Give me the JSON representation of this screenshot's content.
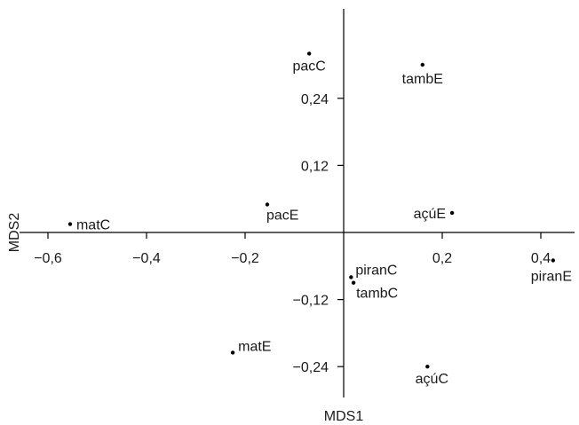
{
  "chart_data": {
    "type": "scatter",
    "title": "",
    "xlabel": "MDS1",
    "ylabel": "MDS2",
    "xlim": [
      -0.6,
      0.42
    ],
    "ylim": [
      -0.29,
      0.4
    ],
    "grid": false,
    "x_ticks": [
      {
        "value": -0.6,
        "label": "−0,6"
      },
      {
        "value": -0.4,
        "label": "−0,4"
      },
      {
        "value": -0.2,
        "label": "−0,2"
      },
      {
        "value": 0.2,
        "label": "0,2"
      },
      {
        "value": 0.4,
        "label": "0,4"
      }
    ],
    "y_ticks": [
      {
        "value": 0.24,
        "label": "0,24"
      },
      {
        "value": 0.12,
        "label": "0,12"
      },
      {
        "value": -0.12,
        "label": "−0,12"
      },
      {
        "value": -0.24,
        "label": "−0,24"
      }
    ],
    "points": [
      {
        "label": "pacC",
        "x": -0.07,
        "y": 0.32
      },
      {
        "label": "tambE",
        "x": 0.16,
        "y": 0.3
      },
      {
        "label": "pacE",
        "x": -0.155,
        "y": 0.05
      },
      {
        "label": "matС",
        "x": -0.555,
        "y": 0.015
      },
      {
        "label": "açúE",
        "x": 0.22,
        "y": 0.035
      },
      {
        "label": "piranC",
        "x": 0.015,
        "y": -0.08
      },
      {
        "label": "tambC",
        "x": 0.02,
        "y": -0.09
      },
      {
        "label": "piranE",
        "x": 0.425,
        "y": -0.05
      },
      {
        "label": "matE",
        "x": -0.225,
        "y": -0.215
      },
      {
        "label": "açúC",
        "x": 0.17,
        "y": -0.24
      }
    ]
  }
}
